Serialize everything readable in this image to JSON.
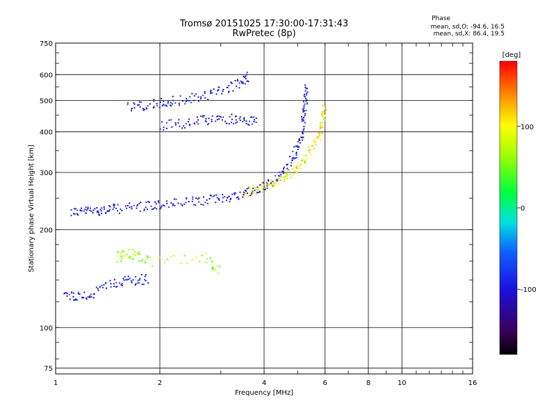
{
  "header": {
    "title": "Tromsø 20151025 17:30:00-17:31:43",
    "subtitle": "RwPretec (8p)"
  },
  "stats": {
    "label": "Phase",
    "o_line": "mean, sd,O: -94.6, 16.5",
    "x_line": "mean, sd,X:  86.4, 19.5"
  },
  "chart_data": {
    "type": "scatter",
    "xlabel": "Frequency [MHz]",
    "ylabel": "Stationary phase Virtual Height [km]",
    "xscale": "log",
    "yscale": "log",
    "xlim": [
      1,
      16
    ],
    "ylim": [
      72,
      750
    ],
    "xticks": [
      1,
      2,
      4,
      6,
      8,
      10,
      16
    ],
    "yticks": [
      75,
      100,
      200,
      300,
      400,
      500,
      600,
      750
    ],
    "grid": true,
    "colorbar": {
      "label": "[deg]",
      "range": [
        -180,
        180
      ],
      "ticks": [
        -100,
        0,
        100
      ],
      "colormap": "rainbow"
    },
    "traces": [
      {
        "phase": -100,
        "points": [
          [
            1.1,
            228
          ],
          [
            1.2,
            229
          ],
          [
            1.3,
            230
          ],
          [
            1.4,
            232
          ],
          [
            1.5,
            233
          ],
          [
            1.7,
            236
          ],
          [
            1.9,
            238
          ],
          [
            2.1,
            241
          ],
          [
            2.4,
            244
          ],
          [
            2.7,
            247
          ],
          [
            3.0,
            251
          ],
          [
            3.3,
            256
          ],
          [
            3.6,
            262
          ],
          [
            3.9,
            270
          ],
          [
            4.2,
            282
          ],
          [
            4.5,
            300
          ],
          [
            4.8,
            330
          ],
          [
            5.0,
            360
          ],
          [
            5.15,
            400
          ],
          [
            5.2,
            450
          ],
          [
            5.25,
            500
          ],
          [
            5.3,
            560
          ]
        ]
      },
      {
        "phase": 100,
        "points": [
          [
            3.5,
            262
          ],
          [
            3.8,
            268
          ],
          [
            4.1,
            275
          ],
          [
            4.4,
            285
          ],
          [
            4.7,
            297
          ],
          [
            5.0,
            315
          ],
          [
            5.3,
            340
          ],
          [
            5.6,
            370
          ],
          [
            5.8,
            400
          ],
          [
            5.9,
            440
          ],
          [
            5.95,
            480
          ]
        ]
      },
      {
        "phase": -100,
        "points": [
          [
            1.6,
            480
          ],
          [
            1.8,
            485
          ],
          [
            2.0,
            492
          ],
          [
            2.2,
            500
          ],
          [
            2.5,
            510
          ],
          [
            2.8,
            525
          ],
          [
            3.1,
            545
          ],
          [
            3.4,
            570
          ],
          [
            3.6,
            600
          ]
        ]
      },
      {
        "phase": -100,
        "points": [
          [
            2.0,
            420
          ],
          [
            2.3,
            425
          ],
          [
            2.6,
            435
          ],
          [
            2.9,
            440
          ],
          [
            3.2,
            440
          ],
          [
            3.5,
            435
          ],
          [
            3.8,
            430
          ]
        ]
      },
      {
        "phase": -100,
        "points": [
          [
            1.05,
            128
          ],
          [
            1.15,
            125
          ],
          [
            1.25,
            126
          ],
          [
            1.4,
            135
          ],
          [
            1.55,
            140
          ],
          [
            1.7,
            140
          ],
          [
            1.85,
            142
          ]
        ]
      },
      {
        "phase": 60,
        "points": [
          [
            1.5,
            165
          ],
          [
            1.6,
            170
          ],
          [
            1.7,
            168
          ],
          [
            1.85,
            160
          ],
          [
            2.7,
            165
          ],
          [
            3.0,
            150
          ]
        ]
      }
    ]
  }
}
